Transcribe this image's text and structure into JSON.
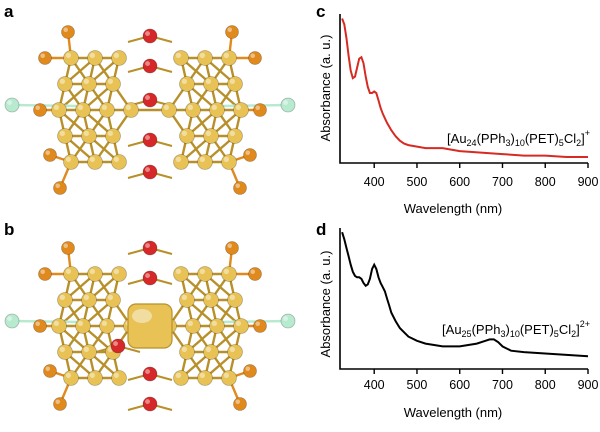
{
  "panels": {
    "a": {
      "letter": "a"
    },
    "b": {
      "letter": "b"
    },
    "c": {
      "letter": "c"
    },
    "d": {
      "letter": "d"
    }
  },
  "colors": {
    "gold": "#e8c255",
    "gold_dark": "#b8902a",
    "phosphorus": "#e08a1e",
    "sulfur": "#d62828",
    "chlorine": "#b8ead0",
    "spectrum_c": "#d62b22",
    "spectrum_d": "#000000"
  },
  "chart_data": [
    {
      "panel": "c",
      "type": "line",
      "title": "",
      "xlabel": "Wavelength (nm)",
      "ylabel": "Absorbance (a. u.)",
      "xlim": [
        320,
        900
      ],
      "xticks": [
        400,
        500,
        600,
        700,
        800,
        900
      ],
      "ylim": [
        0,
        1
      ],
      "label": {
        "pre": "[Au",
        "s1": "24",
        "m1": "(PPh",
        "s2": "3",
        "m2": ")",
        "s3": "10",
        "m3": "(PET)",
        "s4": "5",
        "m4": "Cl",
        "s5": "2",
        "m5": "]",
        "sup": "+"
      },
      "series": [
        {
          "name": "[Au24(PPh3)10(PET)5Cl2]+",
          "color": "#d62b22",
          "x": [
            325,
            330,
            335,
            340,
            345,
            350,
            355,
            360,
            365,
            370,
            375,
            380,
            385,
            390,
            395,
            400,
            405,
            410,
            415,
            420,
            425,
            430,
            440,
            450,
            460,
            470,
            480,
            500,
            520,
            540,
            560,
            580,
            600,
            650,
            700,
            750,
            800,
            850,
            900
          ],
          "y": [
            0.97,
            0.93,
            0.84,
            0.72,
            0.62,
            0.57,
            0.58,
            0.64,
            0.7,
            0.71,
            0.67,
            0.58,
            0.51,
            0.47,
            0.47,
            0.48,
            0.47,
            0.42,
            0.37,
            0.33,
            0.3,
            0.27,
            0.22,
            0.18,
            0.15,
            0.13,
            0.12,
            0.11,
            0.1,
            0.1,
            0.1,
            0.09,
            0.08,
            0.07,
            0.06,
            0.05,
            0.05,
            0.04,
            0.04
          ]
        }
      ]
    },
    {
      "panel": "d",
      "type": "line",
      "title": "",
      "xlabel": "Wavelength (nm)",
      "ylabel": "Absorbance (a. u.)",
      "xlim": [
        320,
        900
      ],
      "xticks": [
        400,
        500,
        600,
        700,
        800,
        900
      ],
      "ylim": [
        0,
        1
      ],
      "label": {
        "pre": "[Au",
        "s1": "25",
        "m1": "(PPh",
        "s2": "3",
        "m2": ")",
        "s3": "10",
        "m3": "(PET)",
        "s4": "5",
        "m4": "Cl",
        "s5": "2",
        "m5": "]",
        "sup": "2+"
      },
      "series": [
        {
          "name": "[Au25(PPh3)10(PET)5Cl2]2+",
          "color": "#000000",
          "x": [
            325,
            330,
            335,
            340,
            345,
            350,
            355,
            360,
            365,
            370,
            375,
            380,
            385,
            390,
            395,
            400,
            405,
            410,
            415,
            420,
            425,
            430,
            435,
            440,
            450,
            460,
            470,
            480,
            500,
            520,
            540,
            560,
            580,
            600,
            620,
            640,
            660,
            670,
            680,
            690,
            700,
            720,
            750,
            800,
            850,
            900
          ],
          "y": [
            0.97,
            0.92,
            0.86,
            0.8,
            0.74,
            0.69,
            0.66,
            0.65,
            0.65,
            0.64,
            0.61,
            0.59,
            0.6,
            0.64,
            0.71,
            0.74,
            0.71,
            0.65,
            0.61,
            0.58,
            0.55,
            0.5,
            0.45,
            0.4,
            0.34,
            0.29,
            0.26,
            0.23,
            0.2,
            0.18,
            0.17,
            0.16,
            0.16,
            0.16,
            0.17,
            0.18,
            0.2,
            0.21,
            0.21,
            0.19,
            0.16,
            0.13,
            0.12,
            0.11,
            0.1,
            0.09
          ]
        }
      ]
    }
  ]
}
